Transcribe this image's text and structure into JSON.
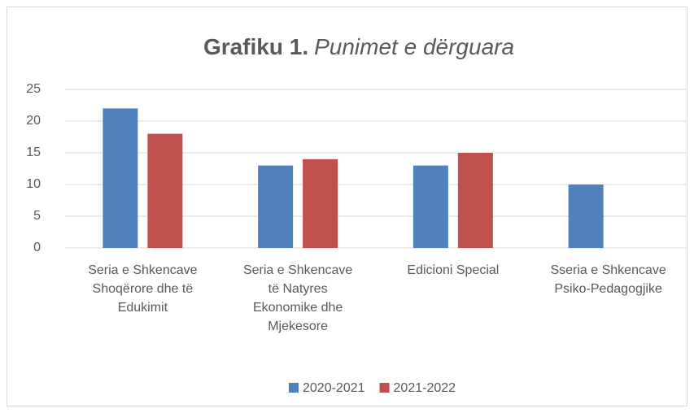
{
  "chart_data": {
    "type": "bar",
    "title": [
      "Grafiku 1.",
      "Punimet e dërguara"
    ],
    "categories": [
      [
        "Seria e Shkencave",
        "Shoqërore dhe të",
        "Edukimit"
      ],
      [
        "Seria e Shkencave",
        "të Natyres",
        "Ekonomike dhe",
        "Mjekesore"
      ],
      [
        "Edicioni Special"
      ],
      [
        "Sseria e Shkencave",
        "Psiko-Pedagogjike"
      ]
    ],
    "series": [
      {
        "name": "2020-2021",
        "color": "#4f81bd",
        "values": [
          22,
          13,
          13,
          10
        ]
      },
      {
        "name": "2021-2022",
        "color": "#c0504d",
        "values": [
          18,
          14,
          15,
          null
        ]
      }
    ],
    "ylim": [
      0,
      25
    ],
    "yticks": [
      0,
      5,
      10,
      15,
      20,
      25
    ],
    "grid": true,
    "legend": "bottom"
  }
}
